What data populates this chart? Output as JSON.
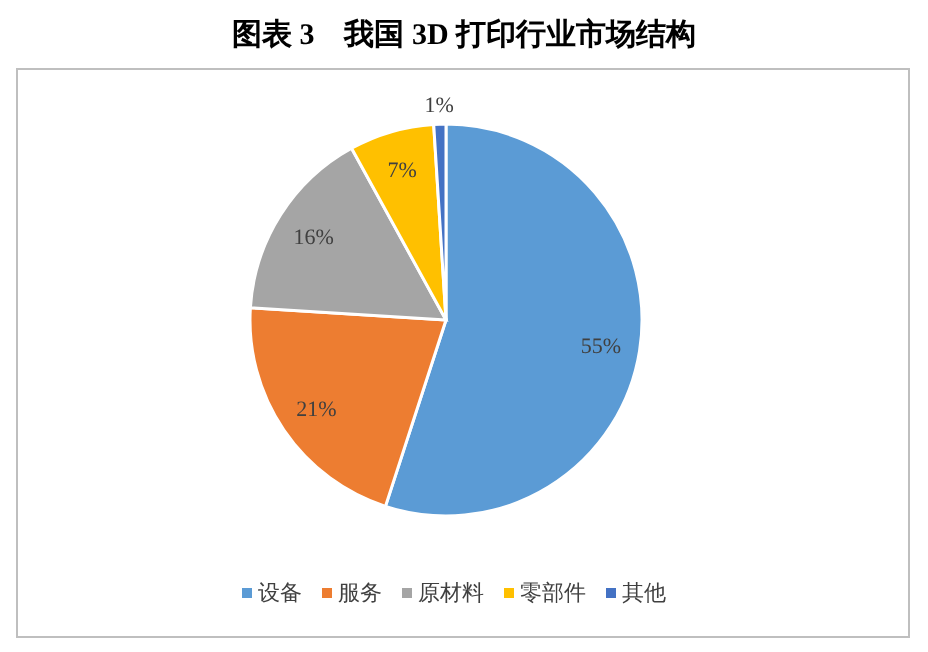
{
  "chart_data": {
    "type": "pie",
    "title": "图表 3    我国 3D 打印行业市场结构",
    "categories": [
      "设备",
      "服务",
      "原材料",
      "零部件",
      "其他"
    ],
    "values": [
      55,
      21,
      16,
      7,
      1
    ],
    "colors": [
      "#5b9bd5",
      "#ed7d31",
      "#a5a5a5",
      "#ffc000",
      "#4472c4"
    ],
    "value_labels": [
      "55%",
      "21%",
      "16%",
      "7%",
      "1%"
    ],
    "legend": "bottom"
  }
}
